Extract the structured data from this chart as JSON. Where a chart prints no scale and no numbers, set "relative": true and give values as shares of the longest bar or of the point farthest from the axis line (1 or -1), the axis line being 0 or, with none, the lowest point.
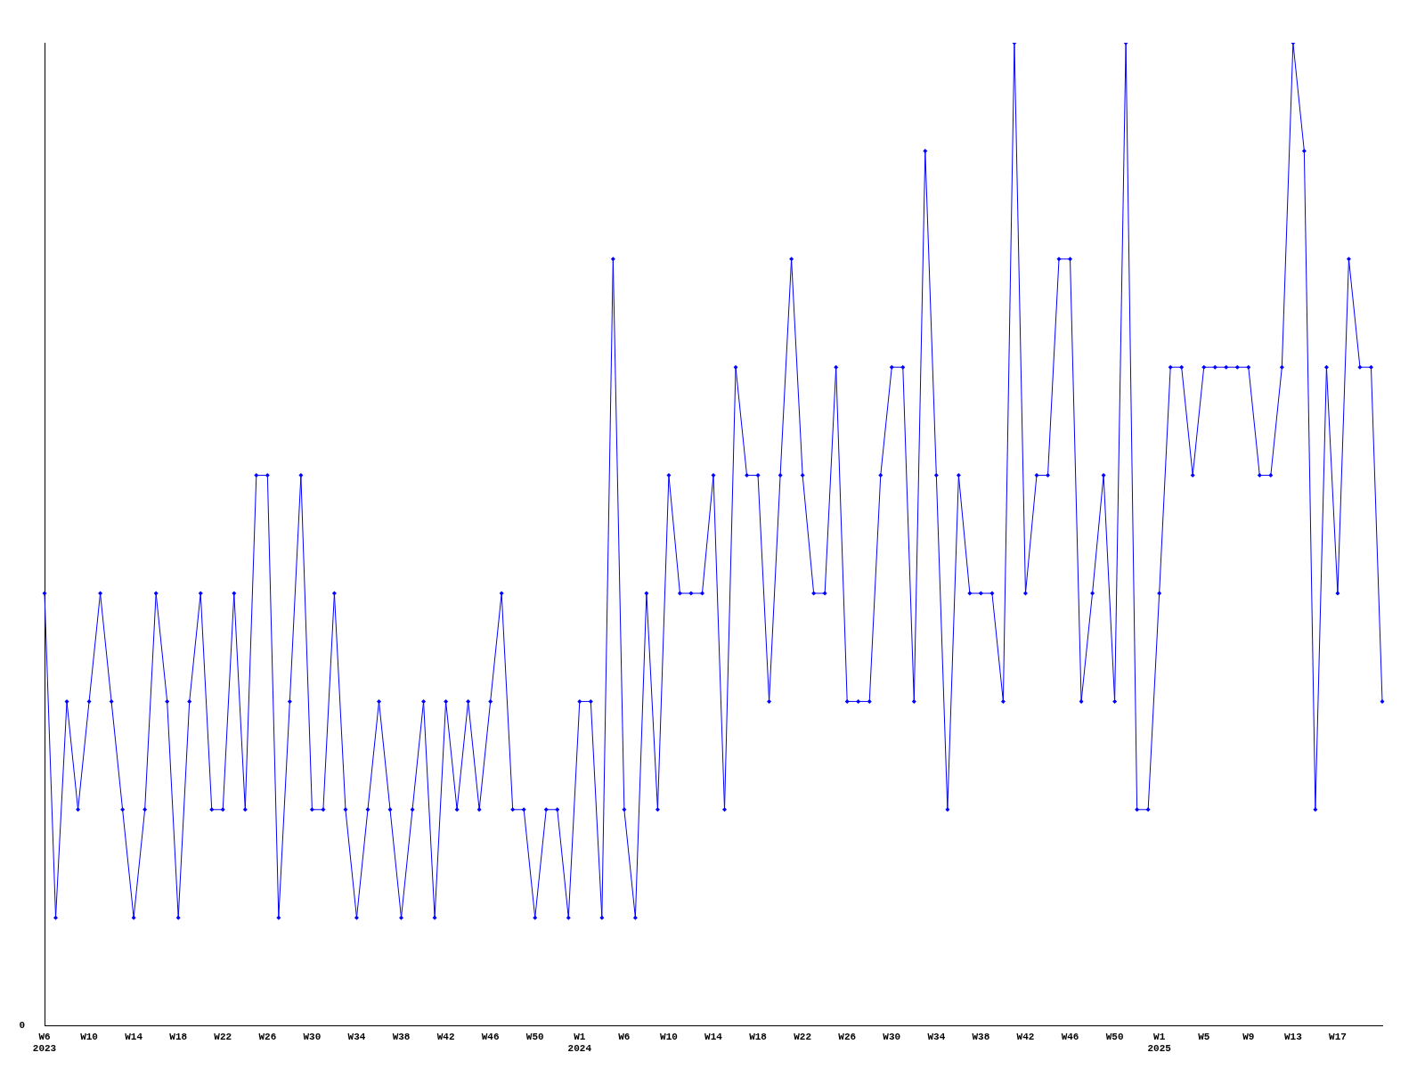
{
  "chart_data": {
    "type": "line",
    "relative": true,
    "grid": false,
    "legend": false,
    "marker": "diamond",
    "line_style": "solid",
    "categories": [
      "W6\n2023",
      null,
      null,
      null,
      "W10",
      null,
      null,
      null,
      "W14",
      null,
      null,
      null,
      "W18",
      null,
      null,
      null,
      "W22",
      null,
      null,
      null,
      "W26",
      null,
      null,
      null,
      "W30",
      null,
      null,
      null,
      "W34",
      null,
      null,
      null,
      "W38",
      null,
      null,
      null,
      "W42",
      null,
      null,
      null,
      "W46",
      null,
      null,
      null,
      "W50",
      null,
      null,
      null,
      "W1\n2024",
      null,
      null,
      null,
      "W6",
      null,
      null,
      null,
      "W10",
      null,
      null,
      null,
      "W14",
      null,
      null,
      null,
      "W18",
      null,
      null,
      null,
      "W22",
      null,
      null,
      null,
      "W26",
      null,
      null,
      null,
      "W30",
      null,
      null,
      null,
      "W34",
      null,
      null,
      null,
      "W38",
      null,
      null,
      null,
      "W42",
      null,
      null,
      null,
      "W46",
      null,
      null,
      null,
      "W50",
      null,
      null,
      null,
      "W1\n2025",
      null,
      null,
      null,
      "W5",
      null,
      null,
      null,
      "W9",
      null,
      null,
      null,
      "W13",
      null,
      null,
      null,
      "W17",
      null,
      null,
      null,
      null
    ],
    "series": [
      {
        "color": "#0000ff",
        "values": [
          0.44,
          0.11,
          0.33,
          0.22,
          0.33,
          0.44,
          0.33,
          0.22,
          0.11,
          0.22,
          0.44,
          0.33,
          0.11,
          0.33,
          0.44,
          0.22,
          0.22,
          0.44,
          0.22,
          0.56,
          0.56,
          0.11,
          0.33,
          0.56,
          0.22,
          0.22,
          0.44,
          0.22,
          0.11,
          0.22,
          0.33,
          0.22,
          0.11,
          0.22,
          0.33,
          0.11,
          0.33,
          0.22,
          0.33,
          0.22,
          0.33,
          0.44,
          0.22,
          0.22,
          0.11,
          0.22,
          0.22,
          0.11,
          0.33,
          0.33,
          0.11,
          0.78,
          0.22,
          0.11,
          0.44,
          0.22,
          0.56,
          0.44,
          0.44,
          0.44,
          0.56,
          0.22,
          0.67,
          0.56,
          0.56,
          0.33,
          0.56,
          0.78,
          0.56,
          0.44,
          0.44,
          0.67,
          0.33,
          0.33,
          0.33,
          0.56,
          0.67,
          0.67,
          0.33,
          0.89,
          0.56,
          0.22,
          0.56,
          0.44,
          0.44,
          0.44,
          0.33,
          1,
          0.44,
          0.56,
          0.56,
          0.78,
          0.78,
          0.33,
          0.44,
          0.56,
          0.33,
          1,
          0.22,
          0.22,
          0.44,
          0.67,
          0.67,
          0.56,
          0.67,
          0.67,
          0.67,
          0.67,
          0.67,
          0.56,
          0.56,
          0.67,
          1,
          0.89,
          0.22,
          0.67,
          0.44,
          0.78,
          0.67,
          0.67,
          0.33
        ]
      }
    ],
    "annotations": [
      "0"
    ]
  }
}
